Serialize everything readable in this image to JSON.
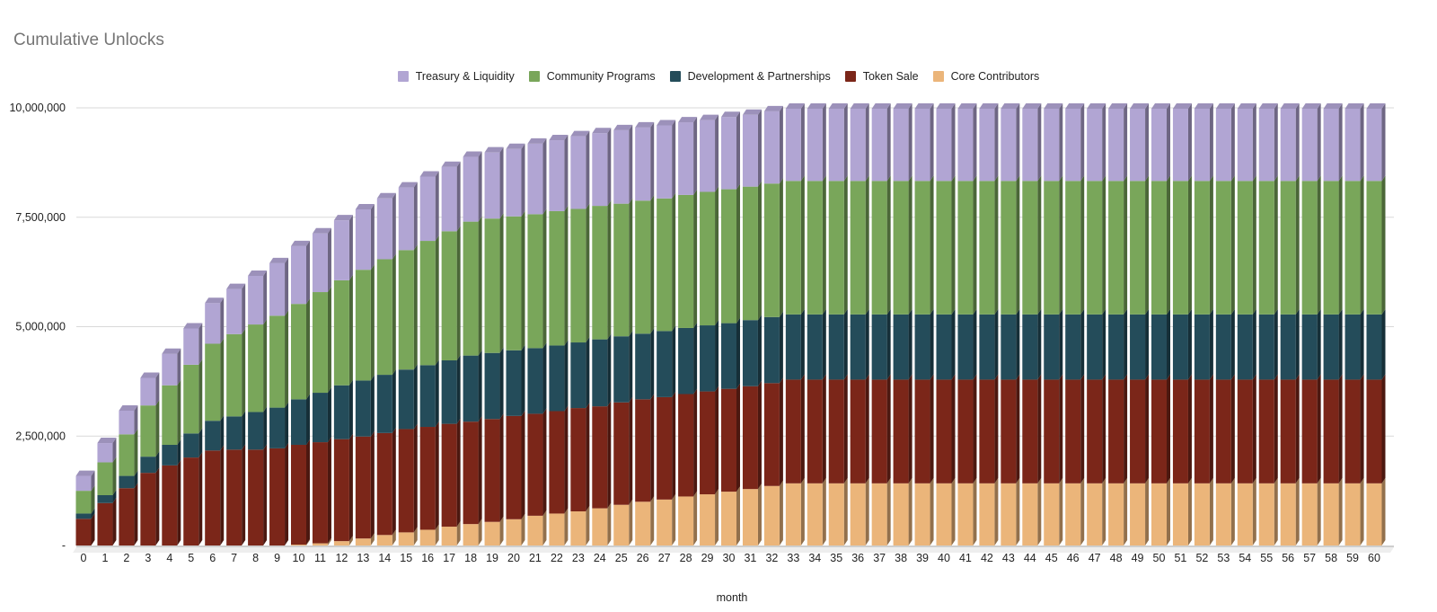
{
  "chart_data": {
    "type": "bar",
    "stacked": true,
    "style": "3d-stacked-column",
    "title": "Cumulative Unlocks",
    "xlabel": "month",
    "ylabel": "",
    "ylim": [
      0,
      10000000
    ],
    "yticks": [
      0,
      2500000,
      5000000,
      7500000,
      10000000
    ],
    "ytick_labels": [
      "-",
      "2,500,000",
      "5,000,000",
      "7,500,000",
      "10,000,000"
    ],
    "grid": true,
    "legend_position": "top",
    "categories": [
      "0",
      "1",
      "2",
      "3",
      "4",
      "5",
      "6",
      "7",
      "8",
      "9",
      "10",
      "11",
      "12",
      "13",
      "14",
      "15",
      "16",
      "17",
      "18",
      "19",
      "20",
      "21",
      "22",
      "23",
      "24",
      "25",
      "26",
      "27",
      "28",
      "29",
      "30",
      "31",
      "32",
      "33",
      "34",
      "35",
      "36",
      "37",
      "38",
      "39",
      "40",
      "41",
      "42",
      "43",
      "44",
      "45",
      "46",
      "47",
      "48",
      "49",
      "50",
      "51",
      "52",
      "53",
      "54",
      "55",
      "56",
      "57",
      "58",
      "59",
      "60"
    ],
    "legend_order": [
      "Treasury & Liquidity",
      "Community Programs",
      "Development & Partnerships",
      "Token Sale",
      "Core Contributors"
    ],
    "series": [
      {
        "name": "Core Contributors",
        "color": "#ebb57a",
        "values": [
          0,
          0,
          0,
          0,
          0,
          0,
          0,
          0,
          0,
          0,
          20000,
          50000,
          100000,
          160000,
          240000,
          300000,
          360000,
          430000,
          490000,
          540000,
          600000,
          680000,
          730000,
          780000,
          850000,
          930000,
          1000000,
          1050000,
          1120000,
          1170000,
          1230000,
          1290000,
          1360000,
          1420000,
          1420000,
          1420000,
          1420000,
          1420000,
          1420000,
          1420000,
          1420000,
          1420000,
          1420000,
          1420000,
          1420000,
          1420000,
          1420000,
          1420000,
          1420000,
          1420000,
          1420000,
          1420000,
          1420000,
          1420000,
          1420000,
          1420000,
          1420000,
          1420000,
          1420000,
          1420000,
          1420000
        ]
      },
      {
        "name": "Token Sale",
        "color": "#7b2619",
        "values": [
          610000,
          970000,
          1310000,
          1660000,
          1830000,
          2010000,
          2170000,
          2190000,
          2190000,
          2220000,
          2280000,
          2310000,
          2330000,
          2330000,
          2330000,
          2360000,
          2350000,
          2350000,
          2340000,
          2350000,
          2360000,
          2330000,
          2340000,
          2360000,
          2330000,
          2340000,
          2340000,
          2340000,
          2340000,
          2350000,
          2350000,
          2350000,
          2350000,
          2370000,
          2370000,
          2370000,
          2370000,
          2370000,
          2370000,
          2370000,
          2370000,
          2370000,
          2370000,
          2370000,
          2370000,
          2370000,
          2370000,
          2370000,
          2370000,
          2370000,
          2370000,
          2370000,
          2370000,
          2370000,
          2370000,
          2370000,
          2370000,
          2370000,
          2370000,
          2370000,
          2370000
        ]
      },
      {
        "name": "Development & Partnerships",
        "color": "#244c5a",
        "values": [
          120000,
          180000,
          280000,
          370000,
          470000,
          550000,
          680000,
          760000,
          860000,
          930000,
          1040000,
          1130000,
          1230000,
          1280000,
          1330000,
          1360000,
          1410000,
          1450000,
          1510000,
          1510000,
          1500000,
          1500000,
          1500000,
          1500000,
          1530000,
          1510000,
          1500000,
          1510000,
          1510000,
          1510000,
          1500000,
          1510000,
          1510000,
          1490000,
          1490000,
          1490000,
          1490000,
          1490000,
          1490000,
          1490000,
          1490000,
          1490000,
          1490000,
          1490000,
          1490000,
          1490000,
          1490000,
          1490000,
          1490000,
          1490000,
          1490000,
          1490000,
          1490000,
          1490000,
          1490000,
          1490000,
          1490000,
          1490000,
          1490000,
          1490000,
          1490000
        ]
      },
      {
        "name": "Community Programs",
        "color": "#79a65a",
        "values": [
          520000,
          750000,
          950000,
          1170000,
          1360000,
          1570000,
          1760000,
          1880000,
          2000000,
          2100000,
          2180000,
          2300000,
          2400000,
          2530000,
          2640000,
          2730000,
          2840000,
          2950000,
          3060000,
          3070000,
          3060000,
          3060000,
          3070000,
          3050000,
          3050000,
          3030000,
          3040000,
          3030000,
          3040000,
          3050000,
          3060000,
          3050000,
          3050000,
          3050000,
          3050000,
          3050000,
          3050000,
          3050000,
          3050000,
          3050000,
          3050000,
          3050000,
          3050000,
          3050000,
          3050000,
          3050000,
          3050000,
          3050000,
          3050000,
          3050000,
          3050000,
          3050000,
          3050000,
          3050000,
          3050000,
          3050000,
          3050000,
          3050000,
          3050000,
          3050000,
          3050000
        ]
      },
      {
        "name": "Treasury & Liquidity",
        "color": "#b1a5d3",
        "values": [
          340000,
          440000,
          540000,
          630000,
          720000,
          830000,
          930000,
          1030000,
          1110000,
          1200000,
          1320000,
          1340000,
          1370000,
          1380000,
          1390000,
          1430000,
          1470000,
          1470000,
          1480000,
          1510000,
          1540000,
          1610000,
          1620000,
          1660000,
          1660000,
          1680000,
          1670000,
          1670000,
          1660000,
          1640000,
          1650000,
          1640000,
          1650000,
          1650000,
          1650000,
          1650000,
          1650000,
          1650000,
          1650000,
          1650000,
          1650000,
          1650000,
          1650000,
          1650000,
          1650000,
          1650000,
          1650000,
          1650000,
          1650000,
          1650000,
          1650000,
          1650000,
          1650000,
          1650000,
          1650000,
          1650000,
          1650000,
          1650000,
          1650000,
          1650000,
          1650000
        ]
      }
    ]
  }
}
